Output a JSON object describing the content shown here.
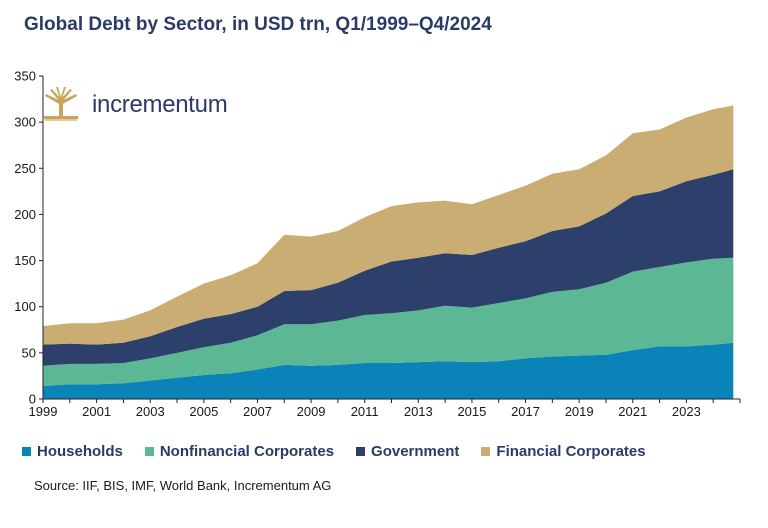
{
  "title": "Global Debt by Sector, in USD trn, Q1/1999–Q4/2024",
  "source": "Source: IIF, BIS, IMF, World Bank, Incrementum AG",
  "logo": {
    "text": "incrementum",
    "icon": "tree-icon"
  },
  "colors": {
    "households": "#0a84b8",
    "nonfinancial": "#5bb794",
    "government": "#2d3f6b",
    "financial": "#c9ad72",
    "logo_gold": "#c9a55c"
  },
  "chart_data": {
    "type": "area",
    "stacked": true,
    "xlim": [
      1999,
      2025
    ],
    "ylim": [
      0,
      350
    ],
    "yticks": [
      0,
      50,
      100,
      150,
      200,
      250,
      300,
      350
    ],
    "xticks": [
      1999,
      2001,
      2003,
      2005,
      2007,
      2009,
      2011,
      2013,
      2015,
      2017,
      2019,
      2021,
      2023
    ],
    "grid": false,
    "legend_position": "bottom",
    "x": [
      1999,
      2000,
      2001,
      2002,
      2003,
      2004,
      2005,
      2006,
      2007,
      2008,
      2009,
      2010,
      2011,
      2012,
      2013,
      2014,
      2015,
      2016,
      2017,
      2018,
      2019,
      2020,
      2021,
      2022,
      2023,
      2024,
      2024.75
    ],
    "series": [
      {
        "name": "Households",
        "key": "households",
        "values": [
          14,
          16,
          16,
          17,
          20,
          23,
          26,
          28,
          32,
          37,
          36,
          37,
          39,
          39,
          40,
          41,
          40,
          41,
          44,
          46,
          47,
          48,
          53,
          57,
          57,
          59,
          61
        ]
      },
      {
        "name": "Nonfinancial Corporates",
        "key": "nonfinancial",
        "values": [
          22,
          22,
          22,
          22,
          24,
          27,
          30,
          33,
          37,
          44,
          45,
          48,
          52,
          54,
          56,
          60,
          59,
          63,
          65,
          70,
          72,
          78,
          85,
          86,
          91,
          93,
          92
        ]
      },
      {
        "name": "Government",
        "key": "government",
        "values": [
          23,
          22,
          21,
          22,
          24,
          28,
          31,
          31,
          31,
          36,
          37,
          41,
          48,
          56,
          57,
          57,
          57,
          60,
          62,
          66,
          68,
          75,
          82,
          82,
          88,
          91,
          96
        ]
      },
      {
        "name": "Financial Corporates",
        "key": "financial",
        "values": [
          20,
          22,
          23,
          25,
          28,
          33,
          38,
          42,
          47,
          61,
          58,
          56,
          58,
          60,
          60,
          57,
          55,
          57,
          60,
          62,
          62,
          63,
          68,
          67,
          69,
          71,
          69
        ]
      }
    ]
  }
}
